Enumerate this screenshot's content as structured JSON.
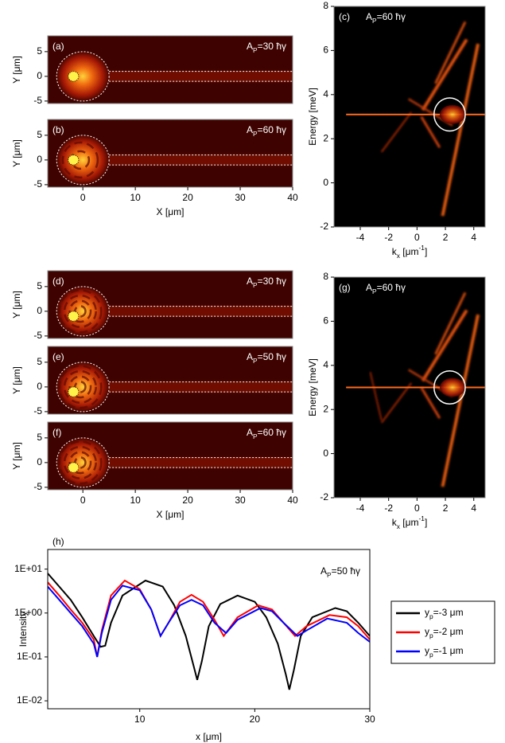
{
  "chart_data": [
    {
      "type": "heatmap",
      "panel_label": "(a)",
      "annotation": [
        "A",
        {
          "sub": "P"
        },
        "=30 ħγ"
      ],
      "ylabel": "Y [μm]",
      "xlim": [
        -6.7,
        40
      ],
      "ylim": [
        -5.5,
        8.2
      ],
      "yticks": [
        5,
        0,
        -5
      ]
    },
    {
      "type": "heatmap",
      "panel_label": "(b)",
      "annotation": [
        "A",
        {
          "sub": "P"
        },
        "=60 ħγ"
      ],
      "ylabel": "Y [μm]",
      "xlabel": [
        "X [μm]"
      ],
      "xlim": [
        -6.7,
        40
      ],
      "ylim": [
        -5.5,
        8.2
      ],
      "yticks": [
        5,
        0,
        -5
      ],
      "xticks": [
        0,
        10,
        20,
        30,
        40
      ]
    },
    {
      "type": "dispersion",
      "panel_label": "(c)",
      "annotation": [
        "A",
        {
          "sub": "P"
        },
        "=60 ħγ"
      ],
      "ylabel": "Energy [meV]",
      "xlabel": [
        "k",
        {
          "sub": "x"
        },
        " [μm",
        {
          "sup": "-1"
        },
        "]"
      ],
      "xlim": [
        -5.85,
        4.8
      ],
      "ylim": [
        -2,
        8
      ],
      "xticks": [
        -4,
        -2,
        0,
        2,
        4
      ],
      "yticks": [
        -2,
        0,
        2,
        4,
        6,
        8
      ]
    },
    {
      "type": "heatmap",
      "panel_label": "(d)",
      "annotation": [
        "A",
        {
          "sub": "P"
        },
        "=30 ħγ"
      ],
      "ylabel": "Y [μm]",
      "xlim": [
        -6.7,
        40
      ],
      "ylim": [
        -5.5,
        8.2
      ],
      "yticks": [
        5,
        0,
        -5
      ]
    },
    {
      "type": "heatmap",
      "panel_label": "(e)",
      "annotation": [
        "A",
        {
          "sub": "P"
        },
        "=50 ħγ"
      ],
      "ylabel": "Y [μm]",
      "xlim": [
        -6.7,
        40
      ],
      "ylim": [
        -5.5,
        8.2
      ],
      "yticks": [
        5,
        0,
        -5
      ]
    },
    {
      "type": "heatmap",
      "panel_label": "(f)",
      "annotation": [
        "A",
        {
          "sub": "P"
        },
        "=60 ħγ"
      ],
      "ylabel": "Y [μm]",
      "xlabel": [
        "X [μm]"
      ],
      "xlim": [
        -6.7,
        40
      ],
      "ylim": [
        -5.5,
        8.2
      ],
      "yticks": [
        5,
        0,
        -5
      ],
      "xticks": [
        0,
        10,
        20,
        30,
        40
      ]
    },
    {
      "type": "dispersion",
      "panel_label": "(g)",
      "annotation": [
        "A",
        {
          "sub": "P"
        },
        "=60 ħγ"
      ],
      "ylabel": "Energy [meV]",
      "xlabel": [
        "k",
        {
          "sub": "x"
        },
        " [μm",
        {
          "sup": "-1"
        },
        "]"
      ],
      "xlim": [
        -5.85,
        4.8
      ],
      "ylim": [
        -2,
        8
      ],
      "xticks": [
        -4,
        -2,
        0,
        2,
        4
      ],
      "yticks": [
        -2,
        0,
        2,
        4,
        6,
        8
      ]
    },
    {
      "type": "line",
      "panel_label": "(h)",
      "annotation": [
        "A",
        {
          "sub": "P"
        },
        "=50 ħγ"
      ],
      "ylabel": "Intensity",
      "xlabel": [
        "x [μm]"
      ],
      "log_y": true,
      "legend": "right",
      "xlim": [
        2,
        30
      ],
      "ylim": [
        0.0066,
        28
      ],
      "xticks": [
        10,
        20,
        30
      ],
      "yticks": [
        {
          "value": 10,
          "label": "1E+01"
        },
        {
          "value": 1,
          "label": "1E+00"
        },
        {
          "value": 0.1,
          "label": "1E-01"
        },
        {
          "value": 0.01,
          "label": "1E-02"
        }
      ],
      "series": [
        {
          "name": [
            "y",
            {
              "sub": "p"
            },
            "=-3 μm"
          ],
          "color": "#000000",
          "x": [
            2,
            3,
            4,
            5,
            6,
            6.6,
            7,
            7.5,
            8.5,
            10.5,
            12,
            13,
            14,
            14.7,
            15,
            15.4,
            16,
            17,
            18.5,
            20,
            21,
            22,
            22.7,
            23,
            23.4,
            24,
            25,
            27,
            28,
            29,
            30
          ],
          "values": [
            8,
            4,
            2,
            0.8,
            0.3,
            0.17,
            0.18,
            0.6,
            2.5,
            5.5,
            4,
            1.5,
            0.3,
            0.06,
            0.03,
            0.08,
            0.5,
            1.6,
            2.5,
            1.8,
            0.8,
            0.2,
            0.04,
            0.018,
            0.05,
            0.3,
            0.8,
            1.3,
            1.1,
            0.6,
            0.3
          ]
        },
        {
          "name": [
            "y",
            {
              "sub": "p"
            },
            "=-2 μm"
          ],
          "color": "#ff0000",
          "x": [
            2,
            3,
            4,
            5,
            6,
            6.3,
            6.7,
            7.5,
            8.7,
            10,
            11,
            11.8,
            12.5,
            13.5,
            14.5,
            15.5,
            16.5,
            17.3,
            18.5,
            20.3,
            21.5,
            22.5,
            23.5,
            24.5,
            26.5,
            28,
            29,
            30
          ],
          "values": [
            5,
            2.5,
            1.2,
            0.6,
            0.25,
            0.1,
            0.4,
            2.5,
            5.5,
            3.5,
            1.2,
            0.3,
            0.6,
            1.8,
            2.6,
            1.8,
            0.7,
            0.3,
            0.8,
            1.5,
            1.2,
            0.6,
            0.3,
            0.5,
            0.9,
            0.8,
            0.5,
            0.25
          ]
        },
        {
          "name": [
            "y",
            {
              "sub": "p"
            },
            "=-1 μm"
          ],
          "color": "#0000ff",
          "x": [
            2,
            3,
            4,
            5,
            6,
            6.3,
            6.7,
            7.5,
            8.5,
            10,
            11,
            11.8,
            12.5,
            13.5,
            14.5,
            15.5,
            16.5,
            17.5,
            18.5,
            20.5,
            21.5,
            22.5,
            23.7,
            24.5,
            26.3,
            28,
            29,
            30
          ],
          "values": [
            4,
            2,
            1,
            0.5,
            0.2,
            0.1,
            0.35,
            2,
            4.2,
            3.3,
            1.2,
            0.3,
            0.6,
            1.5,
            2,
            1.5,
            0.6,
            0.35,
            0.7,
            1.3,
            1.1,
            0.6,
            0.3,
            0.4,
            0.75,
            0.6,
            0.35,
            0.22
          ]
        }
      ]
    }
  ]
}
